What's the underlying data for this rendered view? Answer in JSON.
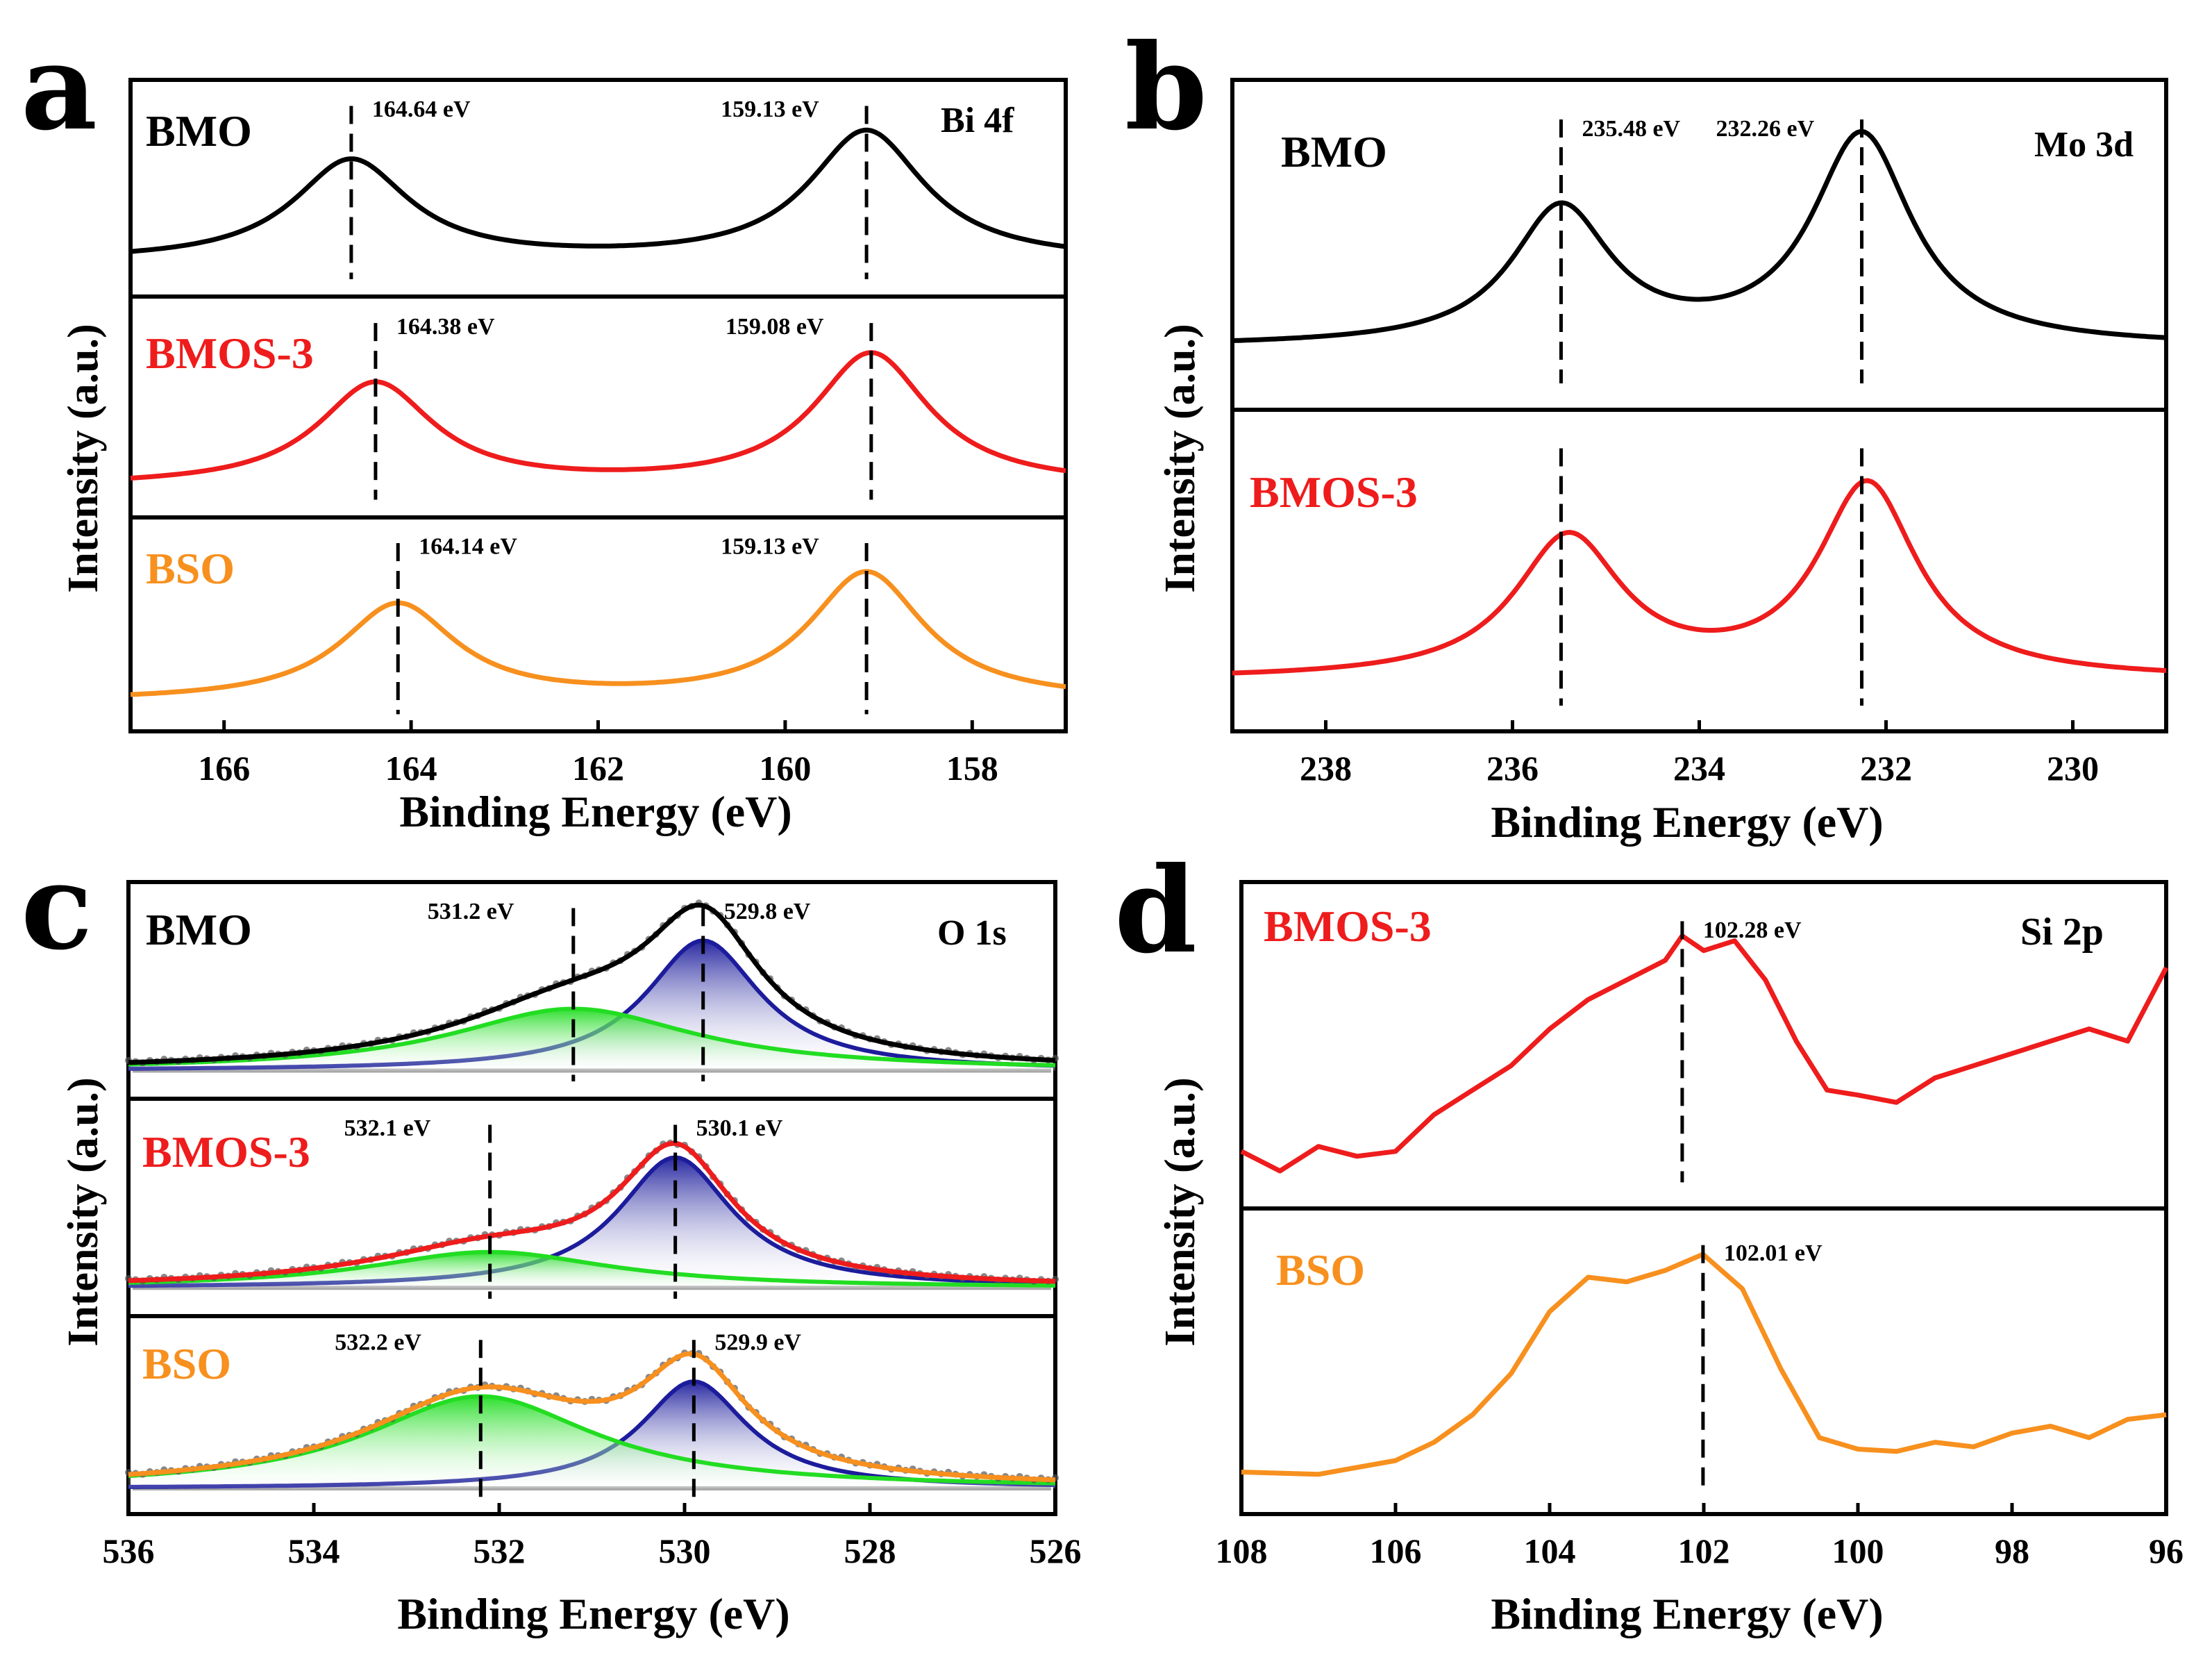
{
  "colors": {
    "BMO": "#000000",
    "BMOS-3": "#ee1c1c",
    "BSO": "#f7901e",
    "fit_lattice": "#1c1c9c",
    "fit_vacancy": "#22dd22",
    "baseline": "#a8a8a8"
  },
  "chart_data": [
    {
      "id": "a",
      "type": "line",
      "panel_label": "a",
      "core_level": "Bi 4f",
      "xlabel": "Binding Energy (eV)",
      "ylabel": "Intensity (a.u.)",
      "xlim": [
        167.0,
        157.0
      ],
      "xticks": [
        "166",
        "164",
        "162",
        "160",
        "158"
      ],
      "xtick_values": [
        166,
        164,
        162,
        160,
        158
      ],
      "series": [
        {
          "name": "BMO",
          "color_key": "BMO",
          "background": 0.08,
          "peaks": [
            {
              "center": 164.64,
              "height": 0.62,
              "width": 0.75
            },
            {
              "center": 159.13,
              "height": 0.8,
              "width": 0.75
            }
          ],
          "markers": [
            {
              "x": 164.64,
              "label": "164.64 eV"
            },
            {
              "x": 159.13,
              "label": "159.13 eV"
            }
          ]
        },
        {
          "name": "BMOS-3",
          "color_key": "BMOS-3",
          "background": 0.05,
          "peaks": [
            {
              "center": 164.38,
              "height": 0.62,
              "width": 0.75
            },
            {
              "center": 159.08,
              "height": 0.8,
              "width": 0.75
            }
          ],
          "markers": [
            {
              "x": 164.38,
              "label": "164.38 eV"
            },
            {
              "x": 159.08,
              "label": "159.08 eV"
            }
          ]
        },
        {
          "name": "BSO",
          "color_key": "BSO",
          "background": 0.05,
          "peaks": [
            {
              "center": 164.14,
              "height": 0.6,
              "width": 0.75
            },
            {
              "center": 159.13,
              "height": 0.8,
              "width": 0.75
            }
          ],
          "markers": [
            {
              "x": 164.14,
              "label": "164.14 eV"
            },
            {
              "x": 159.13,
              "label": "159.13 eV"
            }
          ]
        }
      ]
    },
    {
      "id": "b",
      "type": "line",
      "panel_label": "b",
      "core_level": "Mo 3d",
      "xlabel": "Binding Energy (eV)",
      "ylabel": "Intensity (a.u.)",
      "xlim": [
        239.0,
        229.0
      ],
      "xticks": [
        "238",
        "236",
        "234",
        "232",
        "230"
      ],
      "xtick_values": [
        238,
        236,
        234,
        232,
        230
      ],
      "series": [
        {
          "name": "BMO",
          "color_key": "BMO",
          "background": 0.12,
          "peaks": [
            {
              "center": 235.48,
              "height": 0.55,
              "width": 0.65
            },
            {
              "center": 232.26,
              "height": 0.85,
              "width": 0.65
            }
          ],
          "markers": [
            {
              "x": 235.48,
              "label": "235.48 eV"
            },
            {
              "x": 232.26,
              "label": "232.26 eV"
            }
          ]
        },
        {
          "name": "BMOS-3",
          "color_key": "BMOS-3",
          "background": 0.08,
          "peaks": [
            {
              "center": 235.4,
              "height": 0.58,
              "width": 0.7
            },
            {
              "center": 232.2,
              "height": 0.8,
              "width": 0.65
            }
          ],
          "markers": [
            {
              "x": 235.48,
              "label": ""
            },
            {
              "x": 232.26,
              "label": ""
            }
          ]
        }
      ]
    },
    {
      "id": "c",
      "type": "line",
      "panel_label": "c",
      "core_level": "O 1s",
      "xlabel": "Binding Energy (eV)",
      "ylabel": "Intensity (a.u.)",
      "xlim": [
        536.0,
        526.0
      ],
      "xticks": [
        "536",
        "534",
        "532",
        "530",
        "528",
        "526"
      ],
      "xtick_values": [
        536,
        534,
        532,
        530,
        528,
        526
      ],
      "series": [
        {
          "name": "BMO",
          "color_key": "BMO",
          "background": 0.04,
          "components": [
            {
              "center": 529.8,
              "height": 0.8,
              "width": 0.75,
              "role": "lattice"
            },
            {
              "center": 531.2,
              "height": 0.38,
              "width": 1.6,
              "role": "vacancy"
            }
          ],
          "markers": [
            {
              "x": 529.8,
              "label": "529.8 eV"
            },
            {
              "x": 531.2,
              "label": "531.2 eV"
            }
          ]
        },
        {
          "name": "BMOS-3",
          "color_key": "BMOS-3",
          "background": 0.04,
          "components": [
            {
              "center": 530.1,
              "height": 0.8,
              "width": 0.75,
              "role": "lattice"
            },
            {
              "center": 532.1,
              "height": 0.22,
              "width": 1.6,
              "role": "vacancy"
            }
          ],
          "markers": [
            {
              "x": 530.1,
              "label": "530.1 eV"
            },
            {
              "x": 532.1,
              "label": "532.1 eV"
            }
          ]
        },
        {
          "name": "BSO",
          "color_key": "BSO",
          "background": 0.04,
          "components": [
            {
              "center": 529.9,
              "height": 0.72,
              "width": 0.7,
              "role": "lattice"
            },
            {
              "center": 532.2,
              "height": 0.62,
              "width": 1.5,
              "role": "vacancy"
            }
          ],
          "markers": [
            {
              "x": 529.9,
              "label": "529.9 eV"
            },
            {
              "x": 532.2,
              "label": "532.2 eV"
            }
          ]
        }
      ]
    },
    {
      "id": "d",
      "type": "line",
      "panel_label": "d",
      "core_level": "Si 2p",
      "xlabel": "Binding Energy (eV)",
      "ylabel": "Intensity (a.u.)",
      "xlim": [
        108.0,
        96.0
      ],
      "xticks": [
        "108",
        "106",
        "104",
        "102",
        "100",
        "98",
        "96"
      ],
      "xtick_values": [
        108,
        106,
        104,
        102,
        100,
        98,
        96
      ],
      "series": [
        {
          "name": "BMOS-3",
          "color_key": "BMOS-3",
          "x": [
            108.0,
            107.5,
            107.0,
            106.5,
            106.0,
            105.5,
            105.0,
            104.5,
            104.0,
            103.5,
            103.0,
            102.5,
            102.28,
            102.0,
            101.6,
            101.2,
            100.8,
            100.4,
            100.0,
            99.5,
            99.0,
            98.5,
            98.0,
            97.5,
            97.0,
            96.5,
            96.0
          ],
          "y": [
            0.1,
            0.02,
            0.12,
            0.08,
            0.1,
            0.25,
            0.35,
            0.45,
            0.6,
            0.72,
            0.8,
            0.88,
            0.98,
            0.92,
            0.96,
            0.8,
            0.55,
            0.35,
            0.33,
            0.3,
            0.4,
            0.45,
            0.5,
            0.55,
            0.6,
            0.55,
            0.85
          ],
          "markers": [
            {
              "x": 102.28,
              "label": "102.28 eV"
            }
          ]
        },
        {
          "name": "BSO",
          "color_key": "BSO",
          "x": [
            108.0,
            107.0,
            106.0,
            105.5,
            105.0,
            104.5,
            104.0,
            103.5,
            103.0,
            102.5,
            102.01,
            101.5,
            101.0,
            100.5,
            100.0,
            99.5,
            99.0,
            98.5,
            98.0,
            97.5,
            97.0,
            96.5,
            96.0
          ],
          "y": [
            0.05,
            0.04,
            0.1,
            0.18,
            0.3,
            0.48,
            0.75,
            0.9,
            0.88,
            0.93,
            1.0,
            0.85,
            0.5,
            0.2,
            0.15,
            0.14,
            0.18,
            0.16,
            0.22,
            0.25,
            0.2,
            0.28,
            0.3
          ],
          "markers": [
            {
              "x": 102.01,
              "label": "102.01 eV"
            }
          ]
        }
      ]
    }
  ]
}
